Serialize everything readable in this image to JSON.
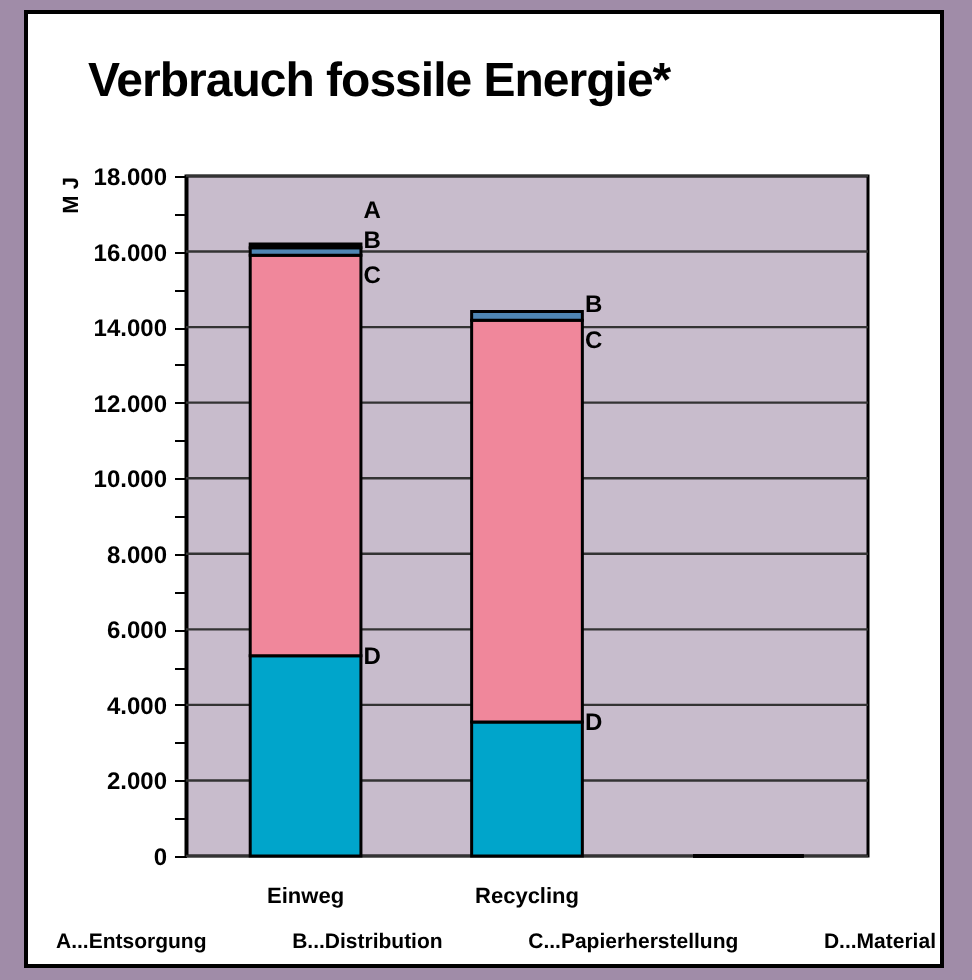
{
  "chart_data": {
    "type": "bar",
    "stacked": true,
    "title": "Verbrauch fossile Energie*",
    "ylabel": "M J",
    "categories": [
      "Einweg",
      "Recycling",
      null
    ],
    "series": [
      {
        "name": "D",
        "color": "#00a5cb",
        "values": [
          5300,
          3550,
          0
        ]
      },
      {
        "name": "C",
        "color": "#f0879b",
        "values": [
          10600,
          10630,
          0
        ]
      },
      {
        "name": "B",
        "color": "#4f86b4",
        "values": [
          200,
          230,
          0
        ]
      },
      {
        "name": "A",
        "color": "#000000",
        "values": [
          100,
          0,
          0
        ]
      }
    ],
    "ylim": [
      0,
      18000
    ],
    "yticks": [
      {
        "value": 0,
        "label": "0"
      },
      {
        "value": 1000,
        "label": null
      },
      {
        "value": 2000,
        "label": "2.000"
      },
      {
        "value": 3000,
        "label": null
      },
      {
        "value": 4000,
        "label": "4.000"
      },
      {
        "value": 5000,
        "label": null
      },
      {
        "value": 6000,
        "label": "6.000"
      },
      {
        "value": 7000,
        "label": null
      },
      {
        "value": 8000,
        "label": "8.000"
      },
      {
        "value": 9000,
        "label": null
      },
      {
        "value": 10000,
        "label": "10.000"
      },
      {
        "value": 11000,
        "label": null
      },
      {
        "value": 12000,
        "label": "12.000"
      },
      {
        "value": 13000,
        "label": null
      },
      {
        "value": 14000,
        "label": "14.000"
      },
      {
        "value": 15000,
        "label": null
      },
      {
        "value": 16000,
        "label": "16.000"
      },
      {
        "value": 17000,
        "label": null
      },
      {
        "value": 18000,
        "label": "18.000"
      }
    ],
    "grid": "y",
    "annotations": [
      "A...Entsorgung",
      "B...Distribution",
      "C...Papierherstellung",
      "D...Material"
    ]
  }
}
